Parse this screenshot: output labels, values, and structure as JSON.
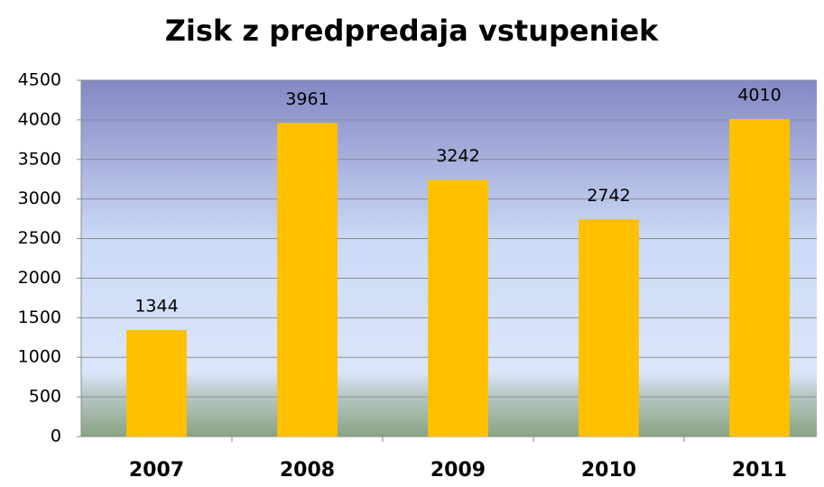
{
  "chart_data": {
    "type": "bar",
    "title": "Zisk z predpredaja vstupeniek",
    "categories": [
      "2007",
      "2008",
      "2009",
      "2010",
      "2011"
    ],
    "values": [
      1344,
      3961,
      3242,
      2742,
      4010
    ],
    "color": "#ffc000",
    "ylim": [
      0,
      4500
    ],
    "yticks": [
      0,
      500,
      1000,
      1500,
      2000,
      2500,
      3000,
      3500,
      4000,
      4500
    ],
    "grid": true
  }
}
